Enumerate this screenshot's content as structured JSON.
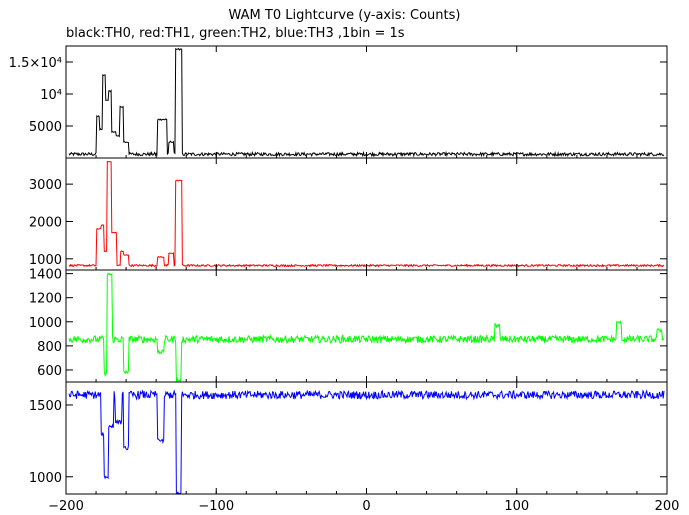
{
  "chart_data": {
    "type": "line",
    "title": "WAM T0 Lightcurve (y-axis: Counts)",
    "subtitle": "black:TH0, red:TH1, green:TH2, blue:TH3 ,1bin = 1s",
    "xlim": [
      -200,
      200
    ],
    "x_ticks": [
      -200,
      -100,
      0,
      100,
      200
    ],
    "x_tick_labels": [
      "−200",
      "−100",
      "0",
      "100",
      "200"
    ],
    "panels": [
      {
        "series": "TH0",
        "color": "#000000",
        "ylim": [
          0,
          17500
        ],
        "y_ticks": [
          5000,
          10000,
          15000
        ],
        "y_tick_labels": [
          "5000",
          "10⁴",
          "1.5×10⁴"
        ],
        "baseline": 600,
        "noise": 250,
        "features": [
          {
            "x": -178,
            "w": 1.5,
            "v": 6500
          },
          {
            "x": -176,
            "w": 1.5,
            "v": 4500
          },
          {
            "x": -174,
            "w": 1.5,
            "v": 13000
          },
          {
            "x": -172,
            "w": 1.5,
            "v": 9000
          },
          {
            "x": -170,
            "w": 1.5,
            "v": 10500
          },
          {
            "x": -168,
            "w": 1.5,
            "v": 4000
          },
          {
            "x": -165,
            "w": 1.5,
            "v": 3500
          },
          {
            "x": -162,
            "w": 2,
            "v": 8000
          },
          {
            "x": -160,
            "w": 1.5,
            "v": 2500
          },
          {
            "x": -136,
            "w": 3,
            "v": 6000
          },
          {
            "x": -130,
            "w": 1.5,
            "v": 2500
          },
          {
            "x": -125,
            "w": 2,
            "v": 17000
          }
        ]
      },
      {
        "series": "TH1",
        "color": "#ff0000",
        "ylim": [
          700,
          3700
        ],
        "y_ticks": [
          1000,
          2000,
          3000
        ],
        "y_tick_labels": [
          "1000",
          "2000",
          "3000"
        ],
        "baseline": 820,
        "noise": 25,
        "features": [
          {
            "x": -178,
            "w": 1.5,
            "v": 1800
          },
          {
            "x": -175,
            "w": 1.5,
            "v": 1900
          },
          {
            "x": -173,
            "w": 1.5,
            "v": 1200
          },
          {
            "x": -171,
            "w": 1.5,
            "v": 3600
          },
          {
            "x": -168,
            "w": 1.5,
            "v": 1700
          },
          {
            "x": -162,
            "w": 1.5,
            "v": 1200
          },
          {
            "x": -160,
            "w": 1.5,
            "v": 1100
          },
          {
            "x": -137,
            "w": 2,
            "v": 1050
          },
          {
            "x": -130,
            "w": 1.5,
            "v": 1150
          },
          {
            "x": -125,
            "w": 2,
            "v": 3100
          }
        ]
      },
      {
        "series": "TH2",
        "color": "#00ff00",
        "ylim": [
          500,
          1430
        ],
        "y_ticks": [
          600,
          800,
          1000,
          1200,
          1400
        ],
        "y_tick_labels": [
          "600",
          "800",
          "1000",
          "1200",
          "1400"
        ],
        "baseline": 855,
        "noise": 30,
        "features": [
          {
            "x": -173,
            "w": 1.5,
            "v": 570
          },
          {
            "x": -171,
            "w": 1.5,
            "v": 1390
          },
          {
            "x": -160,
            "w": 1.5,
            "v": 580
          },
          {
            "x": -137,
            "w": 2,
            "v": 750
          },
          {
            "x": -125,
            "w": 1.5,
            "v": 520
          },
          {
            "x": 87,
            "w": 1.5,
            "v": 970
          },
          {
            "x": 168,
            "w": 1.5,
            "v": 990
          },
          {
            "x": 195,
            "w": 1.5,
            "v": 930
          }
        ]
      },
      {
        "series": "TH3",
        "color": "#0000ff",
        "ylim": [
          880,
          1660
        ],
        "y_ticks": [
          1000,
          1500
        ],
        "y_tick_labels": [
          "1000",
          "1500"
        ],
        "baseline": 1570,
        "noise": 28,
        "features": [
          {
            "x": -175,
            "w": 1.5,
            "v": 1300
          },
          {
            "x": -173,
            "w": 1.5,
            "v": 1000
          },
          {
            "x": -170,
            "w": 1.5,
            "v": 1350
          },
          {
            "x": -165,
            "w": 2,
            "v": 1380
          },
          {
            "x": -160,
            "w": 1.5,
            "v": 1200
          },
          {
            "x": -137,
            "w": 2,
            "v": 1250
          },
          {
            "x": -125,
            "w": 1.5,
            "v": 880
          }
        ]
      }
    ]
  }
}
